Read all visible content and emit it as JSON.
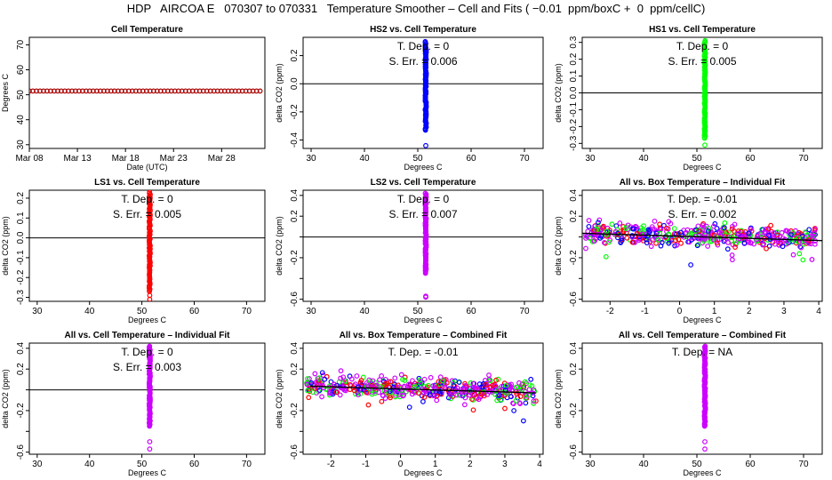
{
  "title": "HDP   AIRCOA E   070307 to 070331   Temperature Smoother – Cell and Fits ( −0.01  ppm/boxC +  0  ppm/cellC)",
  "colors": {
    "red": "#ff0000",
    "blue": "#0000ff",
    "green": "#00ff00",
    "purple": "#cc00ff",
    "darkred": "#aa0000"
  },
  "chart_data": [
    {
      "id": "p1",
      "type": "scatter",
      "title": "Cell Temperature",
      "xlabel": "Date (UTC)",
      "ylabel": "Degrees C",
      "xlim": [
        0,
        24.5
      ],
      "ylim": [
        28.5,
        73
      ],
      "xticks": [
        {
          "v": 0,
          "label": "Mar 08"
        },
        {
          "v": 5,
          "label": "Mar 13"
        },
        {
          "v": 10,
          "label": "Mar 18"
        },
        {
          "v": 15,
          "label": "Mar 23"
        },
        {
          "v": 20,
          "label": "Mar 28"
        }
      ],
      "yticks": [
        30,
        40,
        50,
        60,
        70
      ],
      "series": [
        {
          "name": "cell temperature",
          "color": "darkred",
          "x_range": [
            0,
            24
          ],
          "count": 66,
          "y": 51.5
        }
      ]
    },
    {
      "id": "p2",
      "type": "scatter",
      "title": "HS2 vs. Cell Temperature",
      "xlabel": "Degrees C",
      "ylabel": "delta CO2 (ppm)",
      "xlim": [
        28.5,
        73.5
      ],
      "ylim": [
        -0.46,
        0.33
      ],
      "xticks": [
        30,
        40,
        50,
        60,
        70
      ],
      "yticks": [
        -0.4,
        -0.2,
        0.0,
        0.2
      ],
      "ytick_labels": [
        "-0.4",
        "-0.2",
        "0.0",
        "0.2"
      ],
      "hline": 0,
      "annotations": [
        "T. Dep. =  0",
        "S. Err. =  0.006"
      ],
      "series": [
        {
          "name": "HS2",
          "color": "blue",
          "x": 51.5,
          "y_range": [
            -0.33,
            0.3
          ],
          "outliers": [
            -0.44
          ]
        }
      ]
    },
    {
      "id": "p3",
      "type": "scatter",
      "title": "HS1 vs. Cell Temperature",
      "xlabel": "Degrees C",
      "ylabel": "delta CO2 (ppm)",
      "xlim": [
        28.5,
        73.5
      ],
      "ylim": [
        -0.33,
        0.33
      ],
      "xticks": [
        30,
        40,
        50,
        60,
        70
      ],
      "yticks": [
        -0.3,
        -0.2,
        -0.1,
        0.0,
        0.1,
        0.2,
        0.3
      ],
      "ytick_labels": [
        "-0.3",
        "-0.2",
        "-0.1",
        "0.0",
        "0.1",
        "0.2",
        "0.3"
      ],
      "hline": 0,
      "annotations": [
        "T. Dep. =  0",
        "S. Err. =  0.005"
      ],
      "series": [
        {
          "name": "HS1",
          "color": "green",
          "x": 51.5,
          "y_range": [
            -0.27,
            0.31
          ],
          "outliers": [
            -0.31
          ]
        }
      ]
    },
    {
      "id": "p4",
      "type": "scatter",
      "title": "LS1 vs. Cell Temperature",
      "xlabel": "Degrees C",
      "ylabel": "delta CO2 (ppm)",
      "xlim": [
        28.5,
        73.5
      ],
      "ylim": [
        -0.32,
        0.24
      ],
      "xticks": [
        30,
        40,
        50,
        60,
        70
      ],
      "yticks": [
        -0.3,
        -0.2,
        -0.1,
        0.0,
        0.1,
        0.2
      ],
      "ytick_labels": [
        "-0.3",
        "-0.2",
        "-0.1",
        "0.0",
        "0.1",
        "0.2"
      ],
      "hline": 0,
      "annotations": [
        "T. Dep. =  0",
        "S. Err. =  0.005"
      ],
      "series": [
        {
          "name": "LS1",
          "color": "red",
          "x": 51.5,
          "y_range": [
            -0.27,
            0.23
          ],
          "outliers": [
            -0.29,
            -0.31
          ]
        }
      ]
    },
    {
      "id": "p5",
      "type": "scatter",
      "title": "LS2 vs. Cell Temperature",
      "xlabel": "Degrees C",
      "ylabel": "delta CO2 (ppm)",
      "xlim": [
        28.5,
        73.5
      ],
      "ylim": [
        -0.62,
        0.45
      ],
      "xticks": [
        30,
        40,
        50,
        60,
        70
      ],
      "yticks": [
        -0.6,
        -0.4,
        -0.2,
        0.0,
        0.2,
        0.4
      ],
      "ytick_labels": [
        "-0.6",
        "",
        "-0.2",
        "",
        "0.2",
        "0.4"
      ],
      "hline": 0,
      "annotations": [
        "T. Dep. =  0",
        "S. Err. =  0.007"
      ],
      "series": [
        {
          "name": "LS2",
          "color": "purple",
          "x": 51.5,
          "y_range": [
            -0.35,
            0.42
          ],
          "outliers": [
            -0.57,
            -0.58
          ]
        }
      ]
    },
    {
      "id": "p6",
      "type": "scatter",
      "title": "All vs. Box Temperature – Individual Fit",
      "xlabel": "Degrees C",
      "ylabel": "delta CO2 (ppm)",
      "xlim": [
        -2.8,
        4.1
      ],
      "ylim": [
        -0.62,
        0.45
      ],
      "xticks": [
        -2,
        -1,
        0,
        1,
        2,
        3,
        4
      ],
      "yticks": [
        -0.6,
        -0.4,
        -0.2,
        0.0,
        0.2,
        0.4
      ],
      "ytick_labels": [
        "-0.6",
        "",
        "-0.2",
        "",
        "0.2",
        "0.4"
      ],
      "fit_line": {
        "x": [
          -2.8,
          4.1
        ],
        "y": [
          0.035,
          -0.035
        ]
      },
      "annotations": [
        "T. Dep. =  -0.01",
        "S. Err. =  0.002"
      ],
      "cloud": {
        "x_range": [
          -2.7,
          3.9
        ],
        "y_center": 0.02,
        "spread": 0.1,
        "count": 520,
        "colors": [
          "red",
          "blue",
          "green",
          "purple"
        ],
        "seed": 11
      }
    },
    {
      "id": "p7",
      "type": "scatter",
      "title": "All vs. Cell Temperature – Individual Fit",
      "xlabel": "Degrees C",
      "ylabel": "delta CO2 (ppm)",
      "xlim": [
        28.5,
        73.5
      ],
      "ylim": [
        -0.62,
        0.45
      ],
      "xticks": [
        30,
        40,
        50,
        60,
        70
      ],
      "yticks": [
        -0.6,
        -0.4,
        -0.2,
        0.0,
        0.2,
        0.4
      ],
      "ytick_labels": [
        "-0.6",
        "",
        "-0.2",
        "",
        "0.2",
        "0.4"
      ],
      "hline": 0,
      "annotations": [
        "T. Dep. =  0",
        "S. Err. =  0.003"
      ],
      "series": [
        {
          "name": "All",
          "color": "purple",
          "x": 51.5,
          "y_range": [
            -0.35,
            0.42
          ],
          "outliers": [
            -0.5,
            -0.57
          ]
        }
      ]
    },
    {
      "id": "p8",
      "type": "scatter",
      "title": "All vs. Box Temperature – Combined Fit",
      "xlabel": "Degrees C",
      "ylabel": "delta CO2 (ppm)",
      "xlim": [
        -2.8,
        4.1
      ],
      "ylim": [
        -0.62,
        0.45
      ],
      "xticks": [
        -2,
        -1,
        0,
        1,
        2,
        3,
        4
      ],
      "yticks": [
        -0.6,
        -0.4,
        -0.2,
        0.0,
        0.2,
        0.4
      ],
      "ytick_labels": [
        "-0.6",
        "",
        "-0.2",
        "",
        "0.2",
        "0.4"
      ],
      "fit_line": {
        "x": [
          -2.6,
          3.9
        ],
        "y": [
          0.035,
          -0.03
        ]
      },
      "annotations": [
        "T. Dep. =  -0.01"
      ],
      "cloud": {
        "x_range": [
          -2.7,
          3.9
        ],
        "y_center": 0.02,
        "spread": 0.1,
        "count": 520,
        "colors": [
          "red",
          "blue",
          "green",
          "purple"
        ],
        "seed": 29
      }
    },
    {
      "id": "p9",
      "type": "scatter",
      "title": "All vs. Cell Temperature – Combined Fit",
      "xlabel": "Degrees C",
      "ylabel": "delta CO2 (ppm)",
      "xlim": [
        28.5,
        73.5
      ],
      "ylim": [
        -0.62,
        0.45
      ],
      "xticks": [
        30,
        40,
        50,
        60,
        70
      ],
      "yticks": [
        -0.6,
        -0.4,
        -0.2,
        0.0,
        0.2,
        0.4
      ],
      "ytick_labels": [
        "-0.6",
        "",
        "-0.2",
        "",
        "0.2",
        "0.4"
      ],
      "annotations": [
        "T. Dep. =  NA"
      ],
      "series": [
        {
          "name": "All",
          "color": "purple",
          "x": 51.5,
          "y_range": [
            -0.35,
            0.42
          ],
          "outliers": [
            -0.5,
            -0.57
          ]
        }
      ]
    }
  ]
}
